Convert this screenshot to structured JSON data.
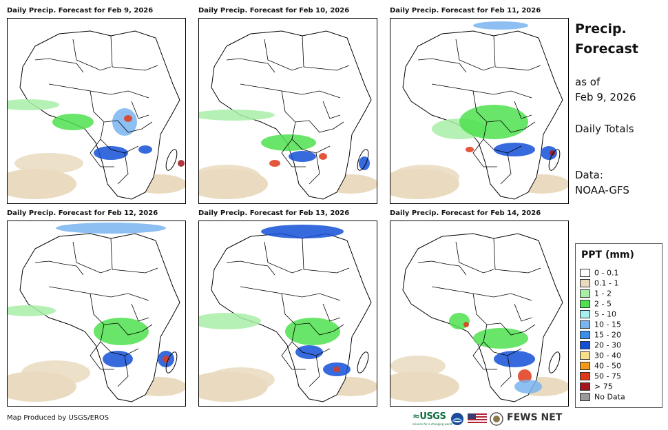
{
  "panels": [
    {
      "title": "Daily Precip. Forecast for Feb 9, 2026"
    },
    {
      "title": "Daily Precip. Forecast for Feb 10, 2026"
    },
    {
      "title": "Daily Precip. Forecast for Feb 11, 2026"
    },
    {
      "title": "Daily Precip. Forecast for Feb 12, 2026"
    },
    {
      "title": "Daily Precip. Forecast for Feb 13, 2026"
    },
    {
      "title": "Daily Precip. Forecast for Feb 14, 2026"
    }
  ],
  "sidebar": {
    "title_line1": "Precip.",
    "title_line2": "Forecast",
    "asof_line1": "as of",
    "asof_line2": "Feb 9, 2026",
    "totals": "Daily Totals",
    "data_line1": "Data:",
    "data_line2": "NOAA-GFS"
  },
  "legend": {
    "title": "PPT (mm)",
    "items": [
      {
        "label": "0 - 0.1",
        "color": "#ffffff"
      },
      {
        "label": "0.1 - 1",
        "color": "#eadbc0"
      },
      {
        "label": "1 - 2",
        "color": "#a8eea8"
      },
      {
        "label": "2 - 5",
        "color": "#4fe04f"
      },
      {
        "label": "5 - 10",
        "color": "#a6f0f0"
      },
      {
        "label": "10 - 15",
        "color": "#79b4f0"
      },
      {
        "label": "15 - 20",
        "color": "#3c8ee8"
      },
      {
        "label": "20 - 30",
        "color": "#1450d6"
      },
      {
        "label": "30 - 40",
        "color": "#f8e08a"
      },
      {
        "label": "40 - 50",
        "color": "#f39a1a"
      },
      {
        "label": "50 - 75",
        "color": "#e0391a"
      },
      {
        "label": "> 75",
        "color": "#a4161d"
      },
      {
        "label": "No Data",
        "color": "#9a9a9a"
      }
    ]
  },
  "footer": {
    "credit": "Map Produced by USGS/EROS",
    "usgs": "≈USGS",
    "usgs_tagline": "science for a changing world",
    "fews": "FEWS NET"
  },
  "colors": {
    "sand": "#eadbc0",
    "light_green": "#a8eea8",
    "green": "#4fe04f",
    "light_blue": "#79b4f0",
    "blue": "#1450d6",
    "red": "#e0391a",
    "dark_red": "#a4161d"
  }
}
